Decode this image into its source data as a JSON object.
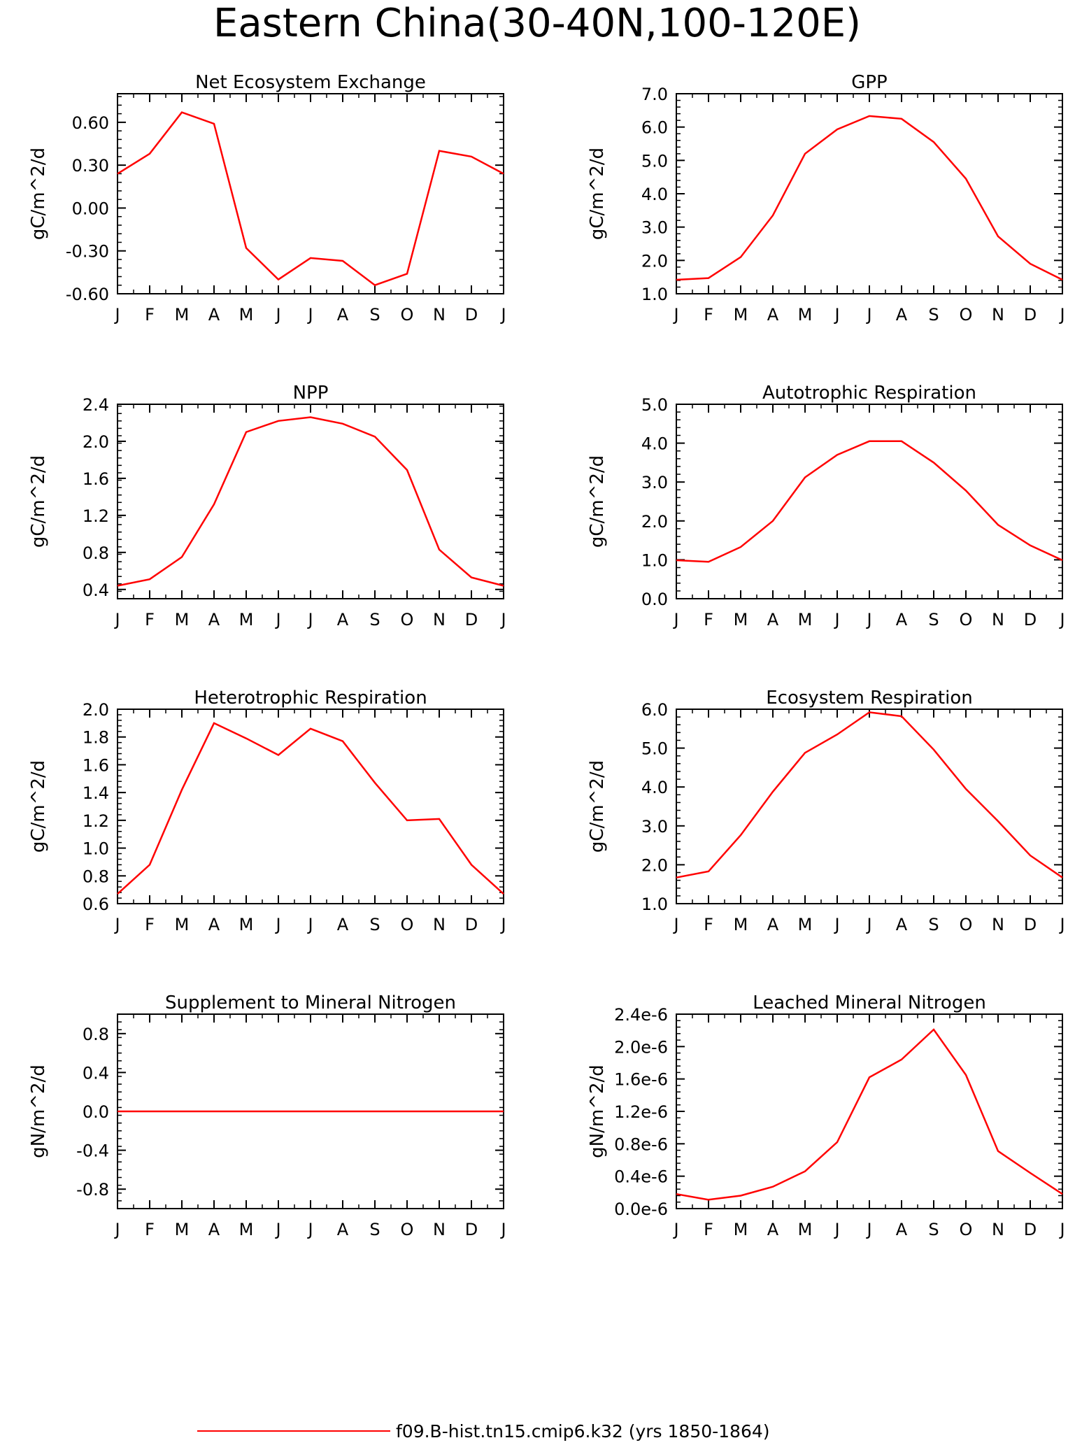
{
  "figure": {
    "title": "Eastern China(30-40N,100-120E)",
    "line_color": "#ff0000",
    "legend": {
      "label": "f09.B-hist.tn15.cmip6.k32 (yrs 1850-1864)",
      "placement": "bottom-center"
    }
  },
  "chart_data": [
    {
      "type": "line",
      "title": "Net Ecosystem Exchange",
      "ylabel": "gC/m^2/d",
      "categories": [
        "J",
        "F",
        "M",
        "A",
        "M",
        "J",
        "J",
        "A",
        "S",
        "O",
        "N",
        "D",
        "J"
      ],
      "ylim": [
        -0.6,
        0.8
      ],
      "yticks": [
        -0.6,
        -0.3,
        0.0,
        0.3,
        0.6
      ],
      "ytick_labels": [
        "-0.60",
        "-0.30",
        "0.00",
        "0.30",
        "0.60"
      ],
      "values": [
        0.24,
        0.38,
        0.67,
        0.59,
        -0.28,
        -0.5,
        -0.35,
        -0.37,
        -0.54,
        -0.46,
        0.4,
        0.36,
        0.24
      ]
    },
    {
      "type": "line",
      "title": "GPP",
      "ylabel": "gC/m^2/d",
      "categories": [
        "J",
        "F",
        "M",
        "A",
        "M",
        "J",
        "J",
        "A",
        "S",
        "O",
        "N",
        "D",
        "J"
      ],
      "ylim": [
        1.0,
        7.0
      ],
      "yticks": [
        1,
        2,
        3,
        4,
        5,
        6,
        7
      ],
      "ytick_labels": [
        "1.0",
        "2.0",
        "3.0",
        "4.0",
        "5.0",
        "6.0",
        "7.0"
      ],
      "values": [
        1.42,
        1.47,
        2.1,
        3.35,
        5.2,
        5.93,
        6.33,
        6.25,
        5.55,
        4.45,
        2.72,
        1.9,
        1.42
      ]
    },
    {
      "type": "line",
      "title": "NPP",
      "ylabel": "gC/m^2/d",
      "categories": [
        "J",
        "F",
        "M",
        "A",
        "M",
        "J",
        "J",
        "A",
        "S",
        "O",
        "N",
        "D",
        "J"
      ],
      "ylim": [
        0.3,
        2.4
      ],
      "yticks": [
        0.4,
        0.8,
        1.2,
        1.6,
        2.0,
        2.4
      ],
      "ytick_labels": [
        "0.4",
        "0.8",
        "1.2",
        "1.6",
        "2.0",
        "2.4"
      ],
      "values": [
        0.44,
        0.51,
        0.75,
        1.32,
        2.1,
        2.22,
        2.26,
        2.19,
        2.05,
        1.69,
        0.83,
        0.53,
        0.44
      ]
    },
    {
      "type": "line",
      "title": "Autotrophic Respiration",
      "ylabel": "gC/m^2/d",
      "categories": [
        "J",
        "F",
        "M",
        "A",
        "M",
        "J",
        "J",
        "A",
        "S",
        "O",
        "N",
        "D",
        "J"
      ],
      "ylim": [
        0.0,
        5.0
      ],
      "yticks": [
        0,
        1,
        2,
        3,
        4,
        5
      ],
      "ytick_labels": [
        "0.0",
        "1.0",
        "2.0",
        "3.0",
        "4.0",
        "5.0"
      ],
      "values": [
        0.99,
        0.95,
        1.33,
        2.0,
        3.12,
        3.7,
        4.05,
        4.05,
        3.5,
        2.78,
        1.9,
        1.37,
        0.99
      ]
    },
    {
      "type": "line",
      "title": "Heterotrophic Respiration",
      "ylabel": "gC/m^2/d",
      "categories": [
        "J",
        "F",
        "M",
        "A",
        "M",
        "J",
        "J",
        "A",
        "S",
        "O",
        "N",
        "D",
        "J"
      ],
      "ylim": [
        0.6,
        2.0
      ],
      "yticks": [
        0.6,
        0.8,
        1.0,
        1.2,
        1.4,
        1.6,
        1.8,
        2.0
      ],
      "ytick_labels": [
        "0.6",
        "0.8",
        "1.0",
        "1.2",
        "1.4",
        "1.6",
        "1.8",
        "2.0"
      ],
      "values": [
        0.67,
        0.88,
        1.42,
        1.9,
        1.79,
        1.67,
        1.86,
        1.77,
        1.47,
        1.2,
        1.21,
        0.88,
        0.67
      ]
    },
    {
      "type": "line",
      "title": "Ecosystem Respiration",
      "ylabel": "gC/m^2/d",
      "categories": [
        "J",
        "F",
        "M",
        "A",
        "M",
        "J",
        "J",
        "A",
        "S",
        "O",
        "N",
        "D",
        "J"
      ],
      "ylim": [
        1.0,
        6.0
      ],
      "yticks": [
        1,
        2,
        3,
        4,
        5,
        6
      ],
      "ytick_labels": [
        "1.0",
        "2.0",
        "3.0",
        "4.0",
        "5.0",
        "6.0"
      ],
      "values": [
        1.67,
        1.83,
        2.76,
        3.88,
        4.88,
        5.35,
        5.92,
        5.82,
        4.96,
        3.95,
        3.12,
        2.24,
        1.67
      ]
    },
    {
      "type": "line",
      "title": "Supplement to Mineral Nitrogen",
      "ylabel": "gN/m^2/d",
      "categories": [
        "J",
        "F",
        "M",
        "A",
        "M",
        "J",
        "J",
        "A",
        "S",
        "O",
        "N",
        "D",
        "J"
      ],
      "ylim": [
        -1.0,
        1.0
      ],
      "yticks": [
        -0.8,
        -0.4,
        0.0,
        0.4,
        0.8
      ],
      "ytick_labels": [
        "-0.8",
        "-0.4",
        "0.0",
        "0.4",
        "0.8"
      ],
      "values": [
        0,
        0,
        0,
        0,
        0,
        0,
        0,
        0,
        0,
        0,
        0,
        0,
        0
      ]
    },
    {
      "type": "line",
      "title": "Leached Mineral Nitrogen",
      "ylabel": "gN/m^2/d",
      "categories": [
        "J",
        "F",
        "M",
        "A",
        "M",
        "J",
        "J",
        "A",
        "S",
        "O",
        "N",
        "D",
        "J"
      ],
      "ylim": [
        0.0,
        2.4e-06
      ],
      "yticks": [
        0,
        4e-07,
        8e-07,
        1.2e-06,
        1.6e-06,
        2e-06,
        2.4e-06
      ],
      "ytick_labels": [
        "0.0e-6",
        "0.4e-6",
        "0.8e-6",
        "1.2e-6",
        "1.6e-6",
        "2.0e-6",
        "2.4e-6"
      ],
      "values": [
        1.8e-07,
        1.1e-07,
        1.6e-07,
        2.7e-07,
        4.6e-07,
        8.2e-07,
        1.62e-06,
        1.84e-06,
        2.21e-06,
        1.65e-06,
        7.1e-07,
        4.4e-07,
        1.8e-07
      ]
    }
  ]
}
